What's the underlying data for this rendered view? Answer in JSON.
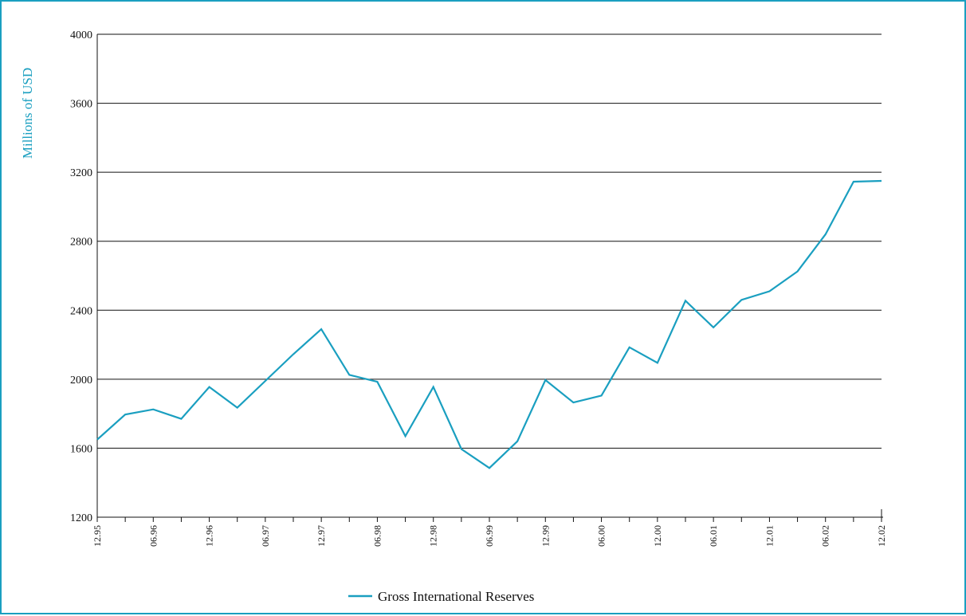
{
  "chart_data": {
    "type": "line",
    "title": "",
    "xlabel": "",
    "ylabel": "Millions of USD",
    "ylim": [
      1200,
      4000
    ],
    "yticks": [
      1200,
      1600,
      2000,
      2400,
      2800,
      3200,
      3600,
      4000
    ],
    "ytick_labels": [
      "1200",
      "1600",
      "2000",
      "2400",
      "2800",
      "3200",
      "3600",
      "4000"
    ],
    "x": [
      "12.95",
      "03.96",
      "06.96",
      "09.96",
      "12.96",
      "03.97",
      "06.97",
      "09.97",
      "12.97",
      "03.98",
      "06.98",
      "09.98",
      "12.98",
      "03.99",
      "06.99",
      "09.99",
      "12.99",
      "03.00",
      "06.00",
      "09.00",
      "12.00",
      "03.01",
      "06.01",
      "09.01",
      "12.01",
      "03.02",
      "06.02",
      "09.02",
      "12.02"
    ],
    "xtick_labels": [
      "12.95",
      "06.96",
      "12.96",
      "06.97",
      "12.97",
      "06.98",
      "12.98",
      "06.99",
      "12.99",
      "06.00",
      "12.00",
      "06.01",
      "12.01",
      "06.02",
      "12.02"
    ],
    "grid": true,
    "legend_position": "bottom-center",
    "series": [
      {
        "name": "Gross International Reserves",
        "color": "#1a9fc0",
        "values": [
          1650,
          1795,
          1825,
          1770,
          1955,
          1835,
          1990,
          2145,
          2290,
          2025,
          1985,
          1670,
          1955,
          1595,
          1485,
          1640,
          1995,
          1865,
          1905,
          2185,
          2095,
          2455,
          2300,
          2460,
          2510,
          2625,
          2840,
          3145,
          3150
        ]
      }
    ]
  }
}
